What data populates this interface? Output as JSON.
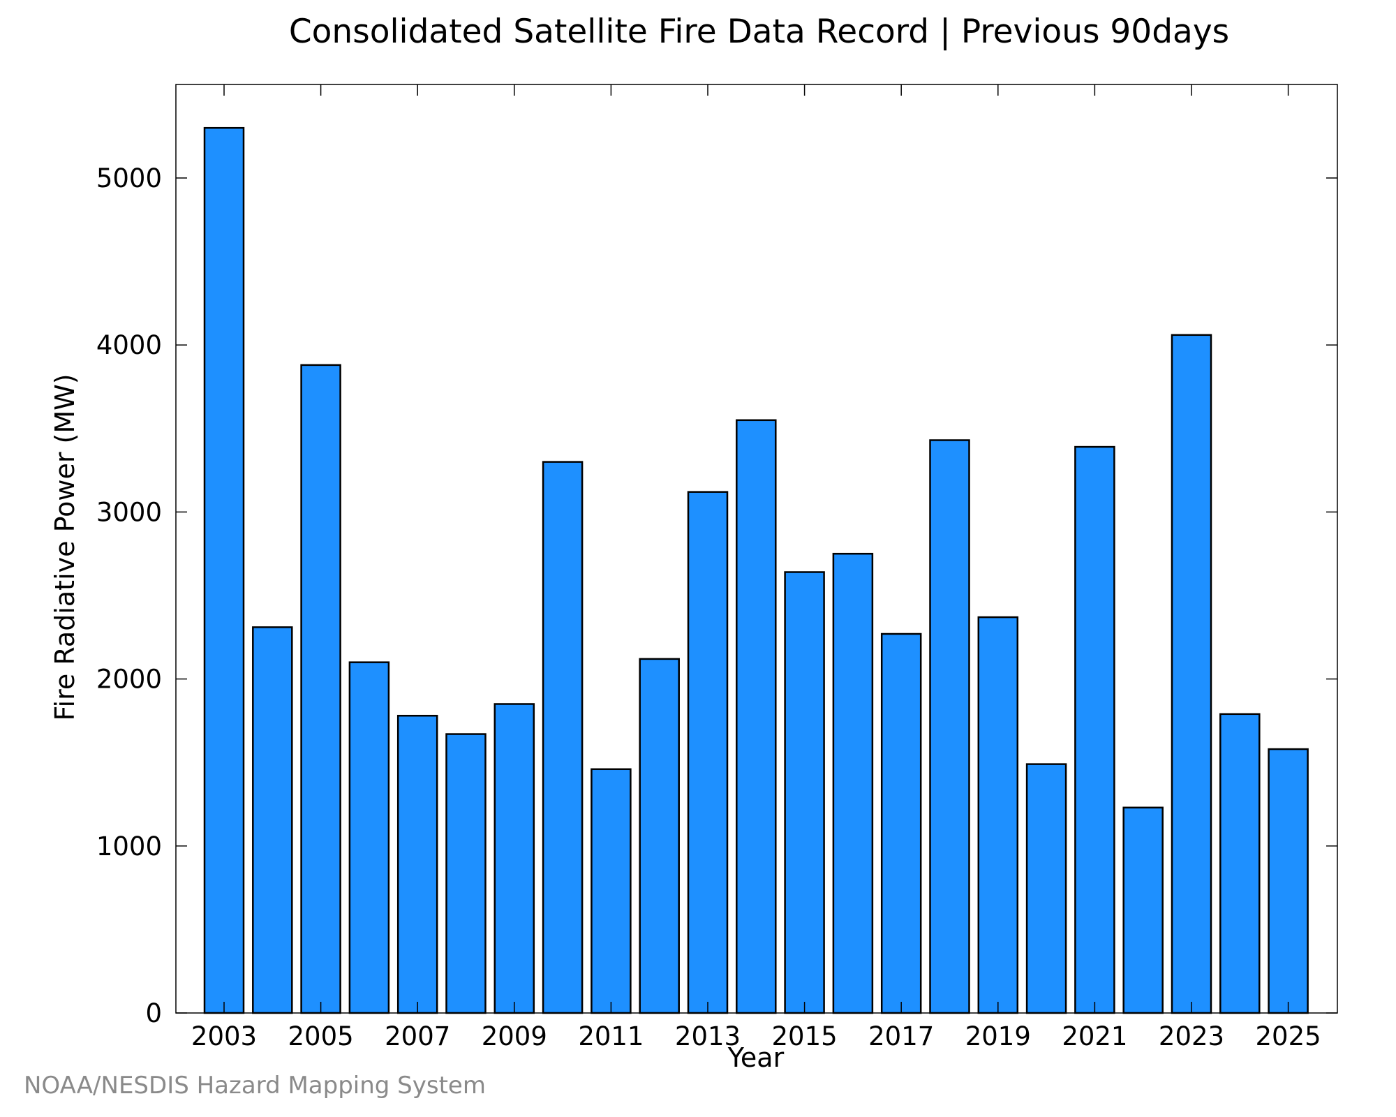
{
  "chart_data": {
    "type": "bar",
    "title": "Consolidated Satellite Fire Data Record | Previous 90days",
    "xlabel": "Year",
    "ylabel": "Fire Radiative Power (MW)",
    "ylim": [
      0,
      5560
    ],
    "yticks": [
      "0",
      "1000",
      "2000",
      "3000",
      "4000",
      "5000"
    ],
    "xtick_labels": [
      "2003",
      "2005",
      "2007",
      "2009",
      "2011",
      "2013",
      "2015",
      "2017",
      "2019",
      "2021",
      "2023",
      "2025"
    ],
    "categories": [
      "2003",
      "2004",
      "2005",
      "2006",
      "2007",
      "2008",
      "2009",
      "2010",
      "2011",
      "2012",
      "2013",
      "2014",
      "2015",
      "2016",
      "2017",
      "2018",
      "2019",
      "2020",
      "2021",
      "2022",
      "2023",
      "2024",
      "2025"
    ],
    "values": [
      5300,
      2310,
      3880,
      2100,
      1780,
      1670,
      1850,
      3300,
      1460,
      2120,
      3120,
      3550,
      2640,
      2750,
      2270,
      3430,
      2370,
      1490,
      3390,
      1230,
      4060,
      1790,
      1580
    ],
    "bar_color": "#1e90ff",
    "grid": false,
    "legend": "none"
  },
  "credit": "NOAA/NESDIS Hazard Mapping System"
}
